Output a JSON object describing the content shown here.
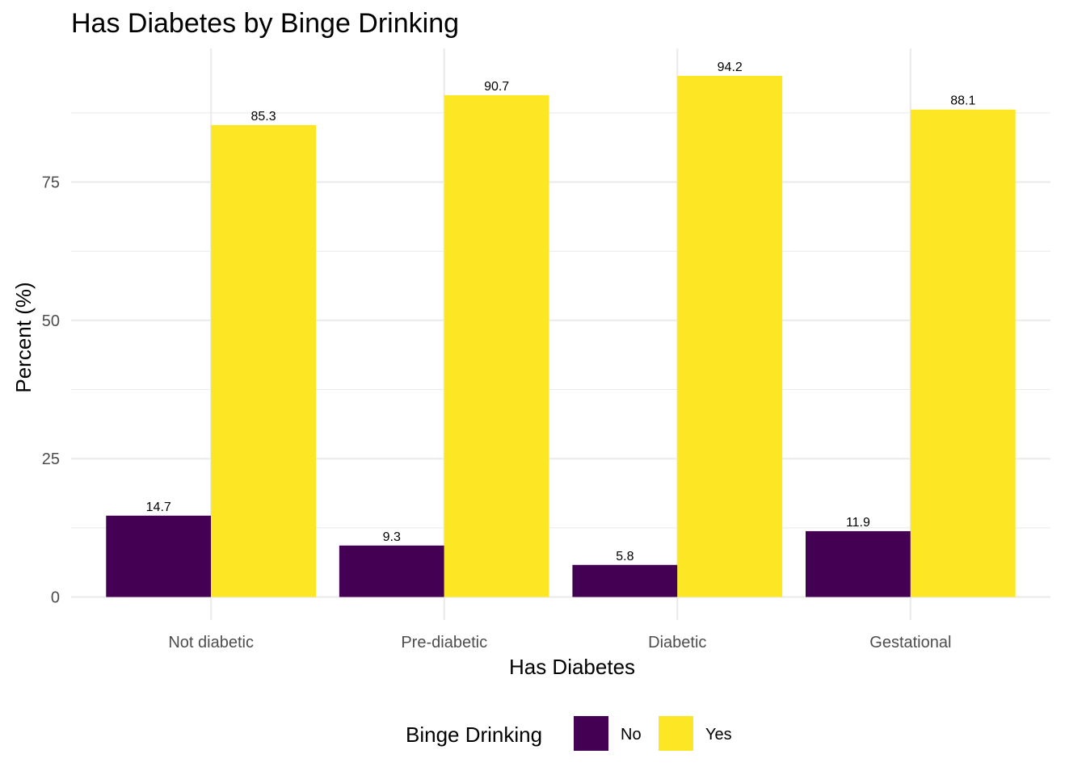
{
  "chart_data": {
    "type": "bar",
    "title": "Has Diabetes by Binge Drinking",
    "xlabel": "Has Diabetes",
    "ylabel": "Percent (%)",
    "categories": [
      "Not diabetic",
      "Pre-diabetic",
      "Diabetic",
      "Gestational"
    ],
    "series": [
      {
        "name": "No",
        "color": "#440154",
        "values": [
          14.7,
          9.3,
          5.8,
          11.9
        ],
        "labels": [
          "14.7",
          "9.3",
          "5.8",
          "11.9"
        ]
      },
      {
        "name": "Yes",
        "color": "#FDE725",
        "values": [
          85.3,
          90.7,
          94.2,
          88.1
        ],
        "labels": [
          "85.3",
          "90.7",
          "94.2",
          "88.1"
        ]
      }
    ],
    "ylim": [
      0,
      98
    ],
    "yticks": [
      0,
      25,
      50,
      75
    ],
    "ytick_labels": [
      "0",
      "25",
      "50",
      "75"
    ],
    "grid": true,
    "legend": {
      "title": "Binge Drinking",
      "position": "bottom"
    }
  }
}
